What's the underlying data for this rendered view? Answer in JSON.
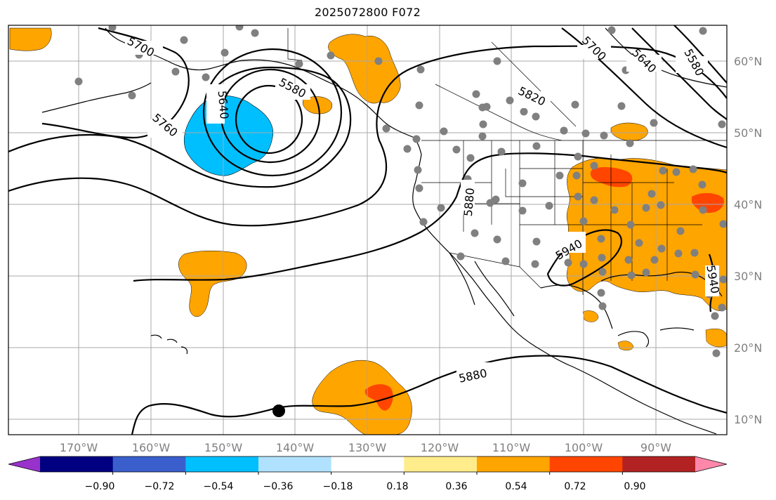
{
  "title": "2025072800 F072",
  "longitude_labels": [
    "170°W",
    "160°W",
    "150°W",
    "140°W",
    "130°W",
    "120°W",
    "110°W",
    "100°W",
    "90°W"
  ],
  "latitude_labels": [
    "60°N",
    "50°N",
    "40°N",
    "30°N",
    "20°N",
    "10°N"
  ],
  "contour_labels": [
    "5700",
    "5700",
    "5640",
    "5580",
    "5580",
    "5640",
    "5760",
    "5820",
    "5880",
    "5880",
    "5940",
    "5940"
  ],
  "colorbar": {
    "colors": [
      "#9932cc",
      "#000080",
      "#3a5fcd",
      "#00bfff",
      "#b0e2ff",
      "#ffffff",
      "#ffec8b",
      "#ffa500",
      "#ff4500",
      "#b22222",
      "#ff88aa"
    ],
    "tick_labels": [
      "−0.90",
      "−0.72",
      "−0.54",
      "−0.36",
      "−0.18",
      "0.18",
      "0.36",
      "0.54",
      "0.72",
      "0.90"
    ]
  },
  "colors": {
    "positive_anomaly": "#ffa500",
    "strong_positive": "#ff4500",
    "negative_anomaly": "#00bfff",
    "station_dot": "#808080",
    "gridline": "#a8a8a8"
  }
}
